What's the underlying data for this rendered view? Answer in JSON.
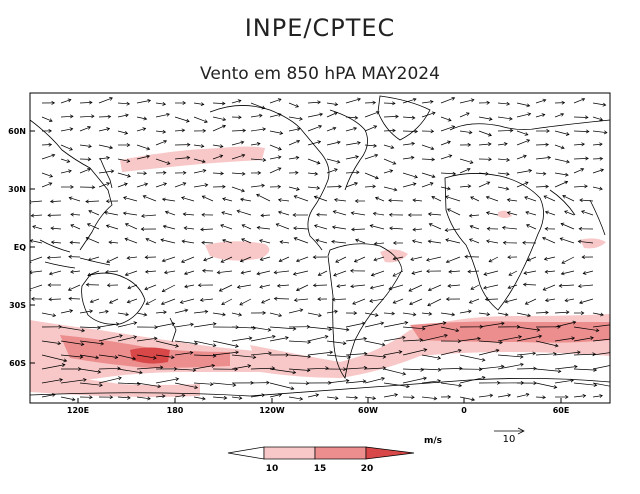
{
  "header": {
    "title": "INPE/CPTEC",
    "subtitle": "Vento em 850 hPA MAY2024"
  },
  "map": {
    "lat_labels": [
      "60N",
      "30N",
      "EQ",
      "30S",
      "60S"
    ],
    "lon_labels": [
      "120E",
      "180",
      "120W",
      "60W",
      "0",
      "60E"
    ],
    "lon_range": [
      90,
      450
    ],
    "lat_range": [
      -80,
      80
    ]
  },
  "legend": {
    "unit": "m/s",
    "ticks": [
      "10",
      "15",
      "20"
    ],
    "colors": [
      "#ffffff",
      "#f8c8c8",
      "#ec8e8e",
      "#d84848"
    ],
    "vector_reference": "10"
  }
}
